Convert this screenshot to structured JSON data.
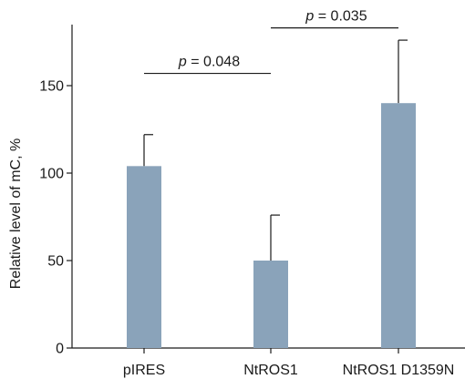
{
  "chart_data": {
    "type": "bar",
    "title": "",
    "xlabel": "",
    "ylabel": "Relative level of mC, %",
    "ylim": [
      0,
      150
    ],
    "yticks": [
      0,
      50,
      100,
      150
    ],
    "categories": [
      "pIRES",
      "NtROS1",
      "NtROS1 D1359N"
    ],
    "values": [
      104,
      50,
      140
    ],
    "error_upper": [
      122,
      76,
      176
    ],
    "bar_color": "#8aa3ba",
    "grid": false,
    "annotations": [
      {
        "from": "pIRES",
        "to": "NtROS1",
        "italic": "p",
        "text": " = 0.048",
        "y": 157
      },
      {
        "from": "NtROS1",
        "to": "NtROS1 D1359N",
        "italic": "p",
        "text": " = 0.035",
        "y": 183
      }
    ]
  }
}
